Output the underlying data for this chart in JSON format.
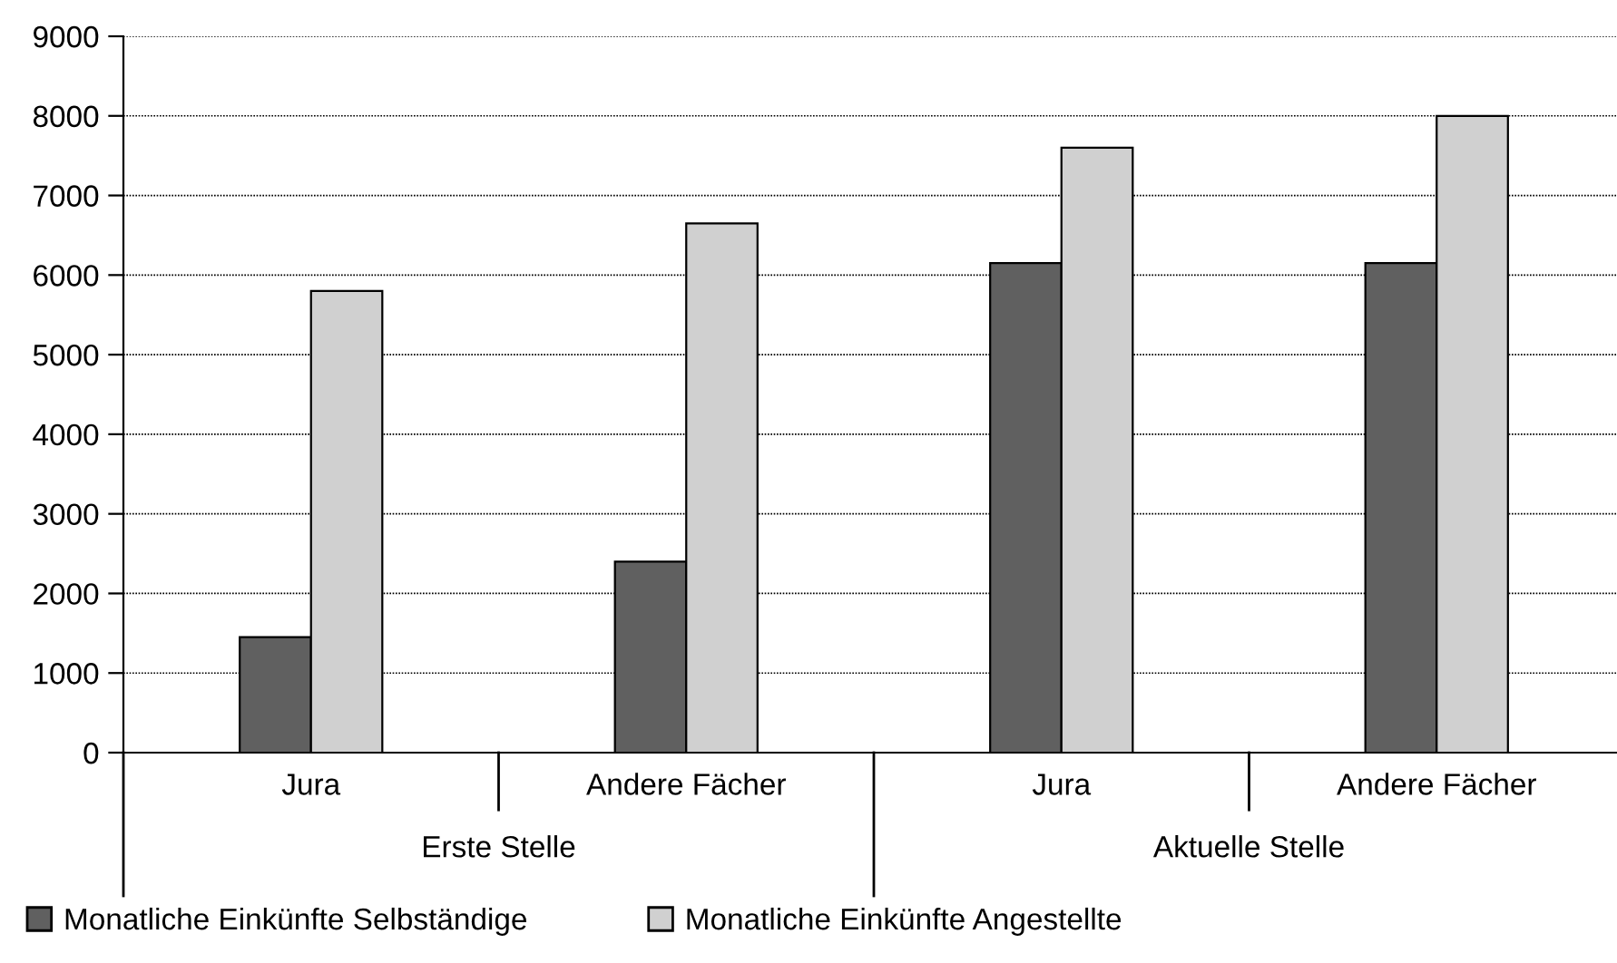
{
  "chart_data": {
    "type": "bar",
    "categories": [
      "Jura",
      "Andere Fächer",
      "Jura",
      "Andere Fächer"
    ],
    "series": [
      {
        "name": "Monatliche Einkünfte Selbständige",
        "color": "#606060",
        "values": [
          1450,
          2400,
          6150,
          6150
        ]
      },
      {
        "name": "Monatliche Einkünfte Angestellte",
        "color": "#d0d0d0",
        "values": [
          5800,
          6650,
          7600,
          8000
        ]
      }
    ],
    "annotations": [
      "Erste Stelle",
      "Aktuelle Stelle"
    ],
    "ylim": [
      0,
      9000
    ],
    "yticks": [
      0,
      1000,
      2000,
      3000,
      4000,
      5000,
      6000,
      7000,
      8000,
      9000
    ],
    "grid": "y",
    "legend": "bottom left"
  }
}
